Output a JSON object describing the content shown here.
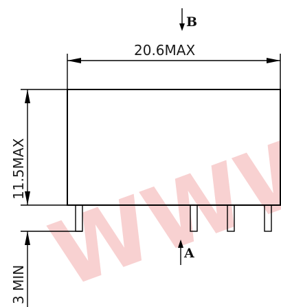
{
  "drawing": {
    "watermark": "WWW",
    "width_dimension": "20.6MAX",
    "height_dimension": "11.5MAX",
    "pin_dimension": "3 MIN",
    "view_top_label": "B",
    "view_bottom_label": "A"
  },
  "colors": {
    "line": "#000000",
    "watermark": "#f7c9c9",
    "background": "#ffffff"
  }
}
